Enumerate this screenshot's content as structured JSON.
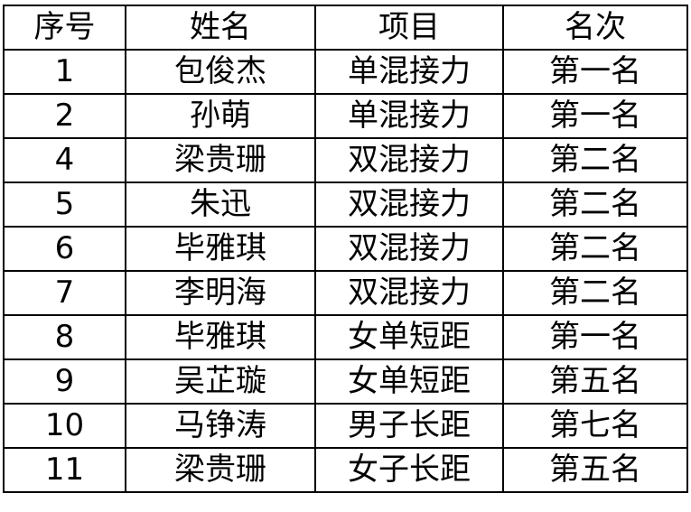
{
  "headers": [
    "序号",
    "姓名",
    "项目",
    "名次"
  ],
  "rows": [
    [
      "1",
      "包俊杰",
      "单混接力",
      "第一名"
    ],
    [
      "2",
      "孙萌",
      "单混接力",
      "第一名"
    ],
    [
      "4",
      "梁贵珊",
      "双混接力",
      "第二名"
    ],
    [
      "5",
      "朱迅",
      "双混接力",
      "第二名"
    ],
    [
      "6",
      "毕雅琪",
      "双混接力",
      "第二名"
    ],
    [
      "7",
      "李明海",
      "双混接力",
      "第二名"
    ],
    [
      "8",
      "毕雅琪",
      "女单短距",
      "第一名"
    ],
    [
      "9",
      "吴芷璇",
      "女单短距",
      "第五名"
    ],
    [
      "10",
      "马铮涛",
      "男子长距",
      "第七名"
    ],
    [
      "11",
      "梁贵珊",
      "女子长距",
      "第五名"
    ]
  ]
}
